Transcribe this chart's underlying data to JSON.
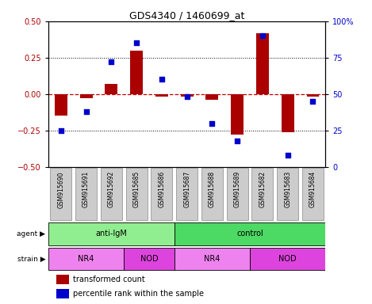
{
  "title": "GDS4340 / 1460699_at",
  "samples": [
    "GSM915690",
    "GSM915691",
    "GSM915692",
    "GSM915685",
    "GSM915686",
    "GSM915687",
    "GSM915688",
    "GSM915689",
    "GSM915682",
    "GSM915683",
    "GSM915684"
  ],
  "red_values": [
    -0.15,
    -0.03,
    0.07,
    0.3,
    -0.02,
    -0.02,
    -0.04,
    -0.28,
    0.42,
    -0.26,
    -0.02
  ],
  "blue_values": [
    25,
    38,
    72,
    85,
    60,
    48,
    30,
    18,
    90,
    8,
    45
  ],
  "ylim_left": [
    -0.5,
    0.5
  ],
  "ylim_right": [
    0,
    100
  ],
  "yticks_left": [
    -0.5,
    -0.25,
    0,
    0.25,
    0.5
  ],
  "yticks_right": [
    0,
    25,
    50,
    75,
    100
  ],
  "ytick_labels_right": [
    "0",
    "25",
    "50",
    "75",
    "100%"
  ],
  "hlines_dotted": [
    0.25,
    -0.25
  ],
  "hline_dashed": 0,
  "agent_groups": [
    {
      "label": "anti-IgM",
      "start": 0,
      "end": 5,
      "color": "#90EE90"
    },
    {
      "label": "control",
      "start": 5,
      "end": 11,
      "color": "#4CD964"
    }
  ],
  "strain_groups": [
    {
      "label": "NR4",
      "start": 0,
      "end": 3,
      "color": "#EE82EE"
    },
    {
      "label": "NOD",
      "start": 3,
      "end": 5,
      "color": "#DD44DD"
    },
    {
      "label": "NR4",
      "start": 5,
      "end": 8,
      "color": "#EE82EE"
    },
    {
      "label": "NOD",
      "start": 8,
      "end": 11,
      "color": "#DD44DD"
    }
  ],
  "bar_color": "#AA0000",
  "dot_color": "#0000CC",
  "red_line_color": "#CC0000",
  "bg_color": "#FFFFFF",
  "plot_bg": "#FFFFFF",
  "legend_red": "transformed count",
  "legend_blue": "percentile rank within the sample",
  "label_agent": "agent",
  "label_strain": "strain",
  "sample_box_color": "#CCCCCC",
  "sample_box_edge": "#888888"
}
